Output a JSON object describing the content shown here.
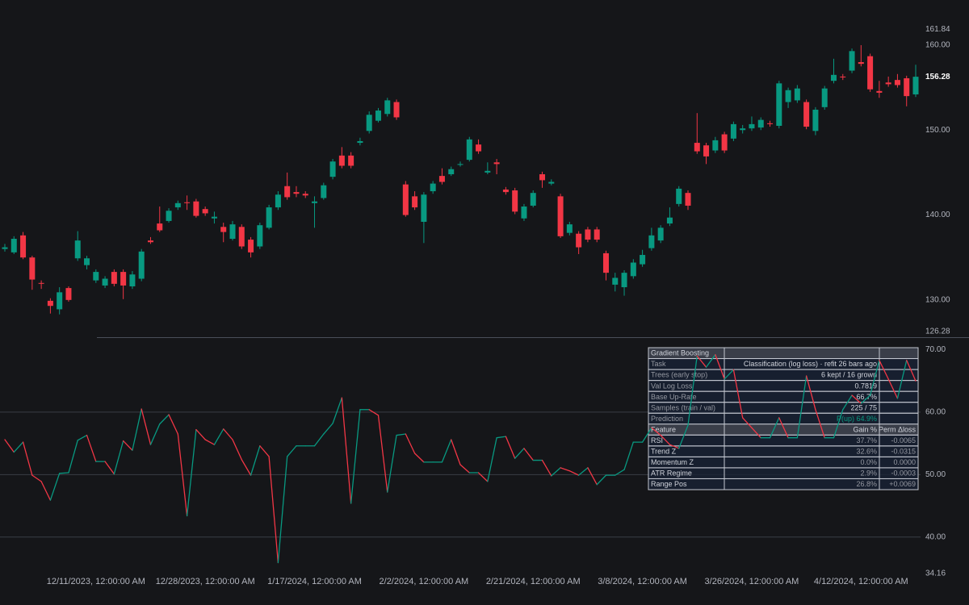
{
  "chart_data": [
    {
      "type": "candlestick",
      "up_color": "#089981",
      "down_color": "#f23645",
      "grid": false,
      "ylim": [
        126.28,
        161.84
      ],
      "yticks": [
        161.84,
        {
          "value": 160,
          "label": "160.00"
        },
        {
          "value": 150,
          "label": "150.00"
        },
        {
          "value": 140,
          "label": "140.00"
        },
        {
          "value": 130,
          "label": "130.00"
        },
        126.28
      ],
      "open": [
        136.0,
        135.6,
        137.6,
        135.0,
        132.0,
        129.9,
        128.9,
        131.4,
        134.9,
        134.1,
        132.3,
        131.7,
        133.3,
        133.3,
        131.6,
        132.5,
        137.0,
        139.0,
        139.3,
        140.9,
        141.5,
        141.6,
        140.7,
        139.6,
        138.6,
        137.2,
        138.6,
        137.1,
        136.3,
        138.5,
        140.9,
        143.4,
        142.7,
        142.5,
        141.4,
        142.0,
        144.5,
        147.0,
        147.0,
        148.5,
        149.9,
        151.1,
        151.9,
        153.3,
        143.6,
        142.2,
        139.2,
        142.8,
        144.6,
        144.8,
        145.9,
        146.5,
        148.3,
        145.0,
        146.2,
        143.0,
        142.9,
        139.6,
        141.1,
        144.8,
        143.7,
        142.2,
        137.9,
        137.8,
        138.3,
        138.3,
        135.5,
        131.8,
        131.5,
        132.8,
        134.2,
        136.1,
        137.0,
        139.0,
        141.3,
        142.6,
        148.5,
        148.2,
        147.6,
        149.5,
        149.0,
        150.0,
        150.2,
        150.3,
        150.8,
        150.5,
        153.3,
        153.5,
        153.3,
        149.9,
        152.7,
        155.8,
        156.3,
        157.0,
        158.0,
        158.7,
        154.6,
        155.6,
        155.9,
        156.1,
        154.2
      ],
      "high": [
        136.6,
        137.5,
        138.0,
        135.2,
        132.3,
        130.2,
        131.5,
        131.6,
        138.1,
        135.2,
        133.6,
        132.8,
        133.6,
        133.6,
        133.4,
        136.0,
        137.4,
        141.0,
        140.8,
        141.7,
        142.3,
        141.9,
        141.0,
        140.4,
        139.1,
        139.3,
        138.9,
        137.4,
        139.1,
        141.2,
        142.8,
        145.0,
        143.4,
        142.8,
        142.2,
        143.8,
        146.6,
        148.0,
        147.4,
        149.1,
        152.2,
        152.6,
        153.8,
        153.6,
        144.0,
        142.8,
        142.7,
        144.0,
        145.5,
        145.7,
        146.3,
        149.2,
        148.9,
        146.2,
        146.6,
        143.3,
        143.2,
        141.3,
        142.9,
        145.1,
        144.2,
        142.5,
        139.2,
        138.1,
        138.6,
        138.6,
        135.8,
        133.2,
        133.5,
        134.8,
        135.9,
        138.5,
        138.8,
        140.9,
        143.4,
        142.9,
        152.0,
        148.5,
        149.2,
        149.8,
        151.0,
        150.6,
        151.6,
        151.5,
        151.1,
        155.8,
        155.0,
        155.3,
        153.6,
        152.7,
        155.2,
        158.4,
        156.6,
        159.6,
        160.0,
        159.0,
        155.8,
        156.3,
        156.6,
        156.4,
        157.7
      ],
      "low": [
        135.7,
        135.4,
        134.8,
        131.2,
        131.3,
        128.4,
        128.3,
        129.8,
        134.6,
        133.6,
        132.0,
        131.4,
        131.6,
        130.1,
        131.3,
        132.2,
        136.6,
        138.0,
        139.1,
        140.6,
        140.6,
        139.7,
        139.9,
        139.0,
        136.8,
        137.0,
        136.0,
        135.0,
        136.0,
        138.3,
        140.6,
        141.8,
        142.1,
        142.0,
        138.5,
        141.8,
        144.2,
        145.5,
        145.5,
        148.2,
        149.6,
        150.9,
        151.6,
        151.2,
        139.8,
        140.6,
        136.7,
        142.5,
        143.6,
        144.6,
        145.7,
        146.3,
        147.2,
        144.8,
        144.8,
        142.4,
        140.1,
        139.3,
        140.9,
        143.2,
        143.5,
        137.3,
        137.6,
        135.4,
        136.8,
        136.8,
        132.3,
        131.0,
        130.5,
        132.5,
        133.9,
        135.8,
        136.7,
        138.7,
        141.0,
        140.6,
        147.2,
        146.0,
        147.3,
        147.3,
        148.7,
        149.6,
        149.9,
        150.0,
        150.4,
        150.2,
        152.6,
        153.2,
        150.1,
        149.4,
        152.4,
        155.5,
        155.9,
        156.7,
        157.5,
        154.5,
        153.8,
        155.1,
        155.0,
        152.8,
        153.9
      ],
      "close": [
        136.2,
        137.2,
        135.0,
        132.4,
        131.9,
        129.3,
        130.9,
        130.0,
        137.0,
        134.9,
        133.3,
        132.5,
        131.9,
        131.7,
        133.0,
        135.7,
        136.8,
        138.2,
        140.5,
        141.4,
        141.4,
        139.9,
        140.2,
        139.8,
        138.0,
        138.9,
        136.3,
        135.6,
        138.8,
        140.9,
        142.4,
        142.1,
        142.5,
        142.3,
        141.6,
        143.5,
        146.3,
        145.8,
        145.8,
        148.7,
        151.8,
        152.3,
        153.5,
        151.5,
        140.0,
        140.9,
        142.4,
        143.7,
        143.9,
        145.4,
        146.0,
        148.9,
        147.5,
        145.2,
        146.0,
        142.7,
        140.4,
        141.0,
        142.6,
        144.1,
        143.9,
        137.5,
        138.9,
        136.2,
        137.1,
        137.1,
        133.2,
        132.6,
        133.2,
        134.4,
        135.3,
        137.6,
        138.5,
        139.7,
        143.1,
        141.1,
        147.5,
        146.9,
        148.8,
        147.6,
        150.7,
        150.2,
        150.7,
        151.2,
        150.7,
        155.5,
        154.7,
        154.9,
        150.4,
        152.4,
        154.9,
        156.5,
        156.2,
        159.3,
        157.8,
        154.8,
        154.4,
        155.4,
        155.3,
        154.0,
        156.28
      ]
    },
    {
      "type": "line",
      "up_color": "#089981",
      "down_color": "#f23645",
      "grid": true,
      "ylim": [
        34.16,
        70
      ],
      "yticks": [
        {
          "value": 70,
          "label": "70.00"
        },
        {
          "value": 60,
          "label": "60.00"
        },
        {
          "value": 50,
          "label": "50.00"
        },
        {
          "value": 40,
          "label": "40.00"
        },
        34.16
      ],
      "categories": [
        null,
        null,
        null,
        null,
        null,
        null,
        null,
        null,
        null,
        null,
        "12/11/2023, 12:00:00 AM",
        null,
        null,
        null,
        null,
        null,
        null,
        null,
        null,
        null,
        null,
        null,
        "12/28/2023, 12:00:00 AM",
        null,
        null,
        null,
        null,
        null,
        null,
        null,
        null,
        null,
        null,
        null,
        "1/17/2024, 12:00:00 AM",
        null,
        null,
        null,
        null,
        null,
        null,
        null,
        null,
        null,
        null,
        null,
        "2/2/2024, 12:00:00 AM",
        null,
        null,
        null,
        null,
        null,
        null,
        null,
        null,
        null,
        null,
        null,
        "2/21/2024, 12:00:00 AM",
        null,
        null,
        null,
        null,
        null,
        null,
        null,
        null,
        null,
        null,
        null,
        "3/8/2024, 12:00:00 AM",
        null,
        null,
        null,
        null,
        null,
        null,
        null,
        null,
        null,
        null,
        null,
        "3/26/2024, 12:00:00 AM",
        null,
        null,
        null,
        null,
        null,
        null,
        null,
        null,
        null,
        null,
        null,
        "4/12/2024, 12:00:00 AM",
        null,
        null,
        null,
        null,
        null,
        null
      ],
      "values": [
        55.6,
        53.6,
        55.2,
        49.9,
        48.9,
        45.9,
        50.2,
        50.3,
        55.5,
        56.3,
        52.1,
        52.1,
        50.1,
        55.4,
        53.9,
        60.5,
        54.8,
        58.1,
        59.6,
        56.5,
        43.4,
        57.2,
        55.6,
        54.8,
        57.3,
        55.6,
        52.4,
        49.9,
        54.6,
        52.9,
        35.9,
        52.9,
        54.6,
        54.6,
        54.6,
        56.5,
        58.2,
        62.3,
        45.4,
        60.4,
        60.4,
        59.5,
        47.2,
        56.3,
        56.5,
        53.4,
        52.0,
        52.0,
        52.0,
        55.6,
        51.6,
        50.3,
        50.3,
        48.9,
        55.9,
        56.1,
        52.6,
        54.2,
        52.3,
        52.3,
        49.8,
        51.1,
        50.6,
        49.9,
        51.1,
        48.4,
        49.9,
        49.9,
        50.8,
        55.2,
        55.2,
        57.5,
        56.3,
        54.8,
        54.2,
        57.9,
        69.0,
        67.2,
        69.2,
        65.3,
        66.8,
        59.1,
        57.5,
        55.9,
        55.9,
        59.1,
        55.9,
        55.9,
        65.8,
        60.4,
        55.9,
        55.9,
        60.4,
        62.7,
        61.4,
        62.7,
        68.3,
        65.3,
        62.2,
        68.3,
        65.0
      ]
    }
  ],
  "table": {
    "title": "Gradient Boosting",
    "rows": [
      [
        "Task",
        "Classification (log loss) · refit 26 bars ago"
      ],
      [
        "Trees (early stop)",
        "6 kept / 16 grown"
      ],
      [
        "Val Log Loss",
        "0.7819"
      ],
      [
        "Base Up-Rate",
        "66.7%"
      ],
      [
        "Samples (train / val)",
        "225 / 75"
      ],
      [
        "Prediction",
        "P(up) 64.9%"
      ]
    ],
    "header": [
      "Feature",
      "Gain %",
      "Perm Δloss"
    ],
    "features": [
      [
        "RSI",
        "37.7%",
        "-0.0065"
      ],
      [
        "Trend Z",
        "32.6%",
        "-0.0315"
      ],
      [
        "Momentum Z",
        "0.0%",
        "0.0000"
      ],
      [
        "ATR Regime",
        "2.9%",
        "-0.0003"
      ],
      [
        "Range Pos",
        "26.8%",
        "+0.0069"
      ]
    ]
  }
}
